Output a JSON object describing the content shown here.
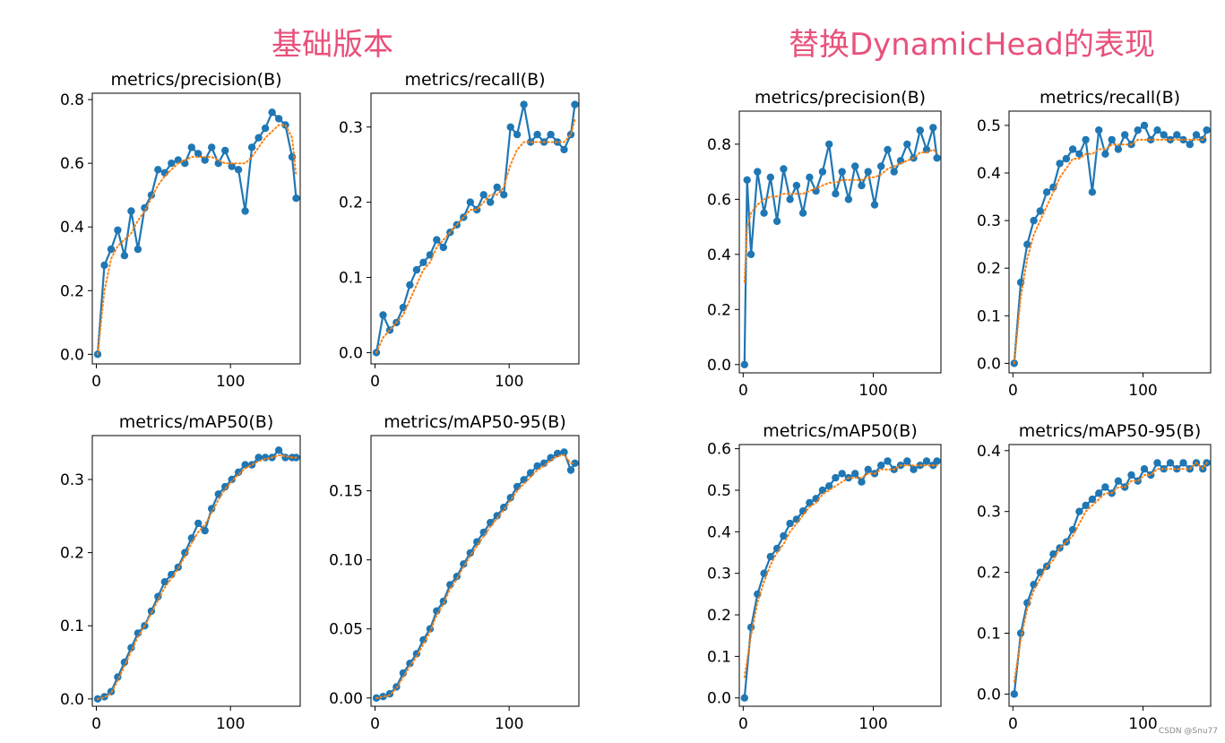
{
  "titles": {
    "left": "基础版本",
    "right": "替换DynamicHead的表现"
  },
  "watermark": "CSDN @Snu77",
  "colors": {
    "title": "#e8517a",
    "series": "#1f77b4",
    "smooth": "#ff7f0e"
  },
  "chart_data": [
    {
      "type": "line",
      "group": "基础版本",
      "title": "metrics/precision(B)",
      "xlim": [
        -3,
        152
      ],
      "ylim": [
        -0.03,
        0.82
      ],
      "xticks": [
        0,
        100
      ],
      "yticks": [
        0.0,
        0.2,
        0.4,
        0.6,
        0.8
      ],
      "ytick_labels": [
        "0.0",
        "0.2",
        "0.4",
        "0.6",
        "0.8"
      ],
      "x": [
        1,
        6,
        11,
        16,
        21,
        26,
        31,
        36,
        41,
        46,
        51,
        56,
        61,
        66,
        71,
        76,
        81,
        86,
        91,
        96,
        101,
        106,
        111,
        116,
        121,
        126,
        131,
        136,
        141,
        146,
        149
      ],
      "y": [
        0.0,
        0.28,
        0.33,
        0.39,
        0.31,
        0.45,
        0.33,
        0.46,
        0.5,
        0.58,
        0.57,
        0.6,
        0.61,
        0.6,
        0.65,
        0.63,
        0.61,
        0.65,
        0.6,
        0.64,
        0.59,
        0.58,
        0.45,
        0.65,
        0.68,
        0.71,
        0.76,
        0.74,
        0.72,
        0.62,
        0.49
      ],
      "smooth": [
        0.0,
        0.2,
        0.3,
        0.34,
        0.36,
        0.38,
        0.42,
        0.45,
        0.49,
        0.53,
        0.56,
        0.58,
        0.6,
        0.61,
        0.62,
        0.62,
        0.62,
        0.62,
        0.61,
        0.6,
        0.6,
        0.6,
        0.6,
        0.62,
        0.65,
        0.68,
        0.7,
        0.72,
        0.72,
        0.68,
        0.56
      ]
    },
    {
      "type": "line",
      "group": "基础版本",
      "title": "metrics/recall(B)",
      "xlim": [
        -3,
        152
      ],
      "ylim": [
        -0.015,
        0.345
      ],
      "xticks": [
        0,
        100
      ],
      "yticks": [
        0.0,
        0.1,
        0.2,
        0.3
      ],
      "ytick_labels": [
        "0.0",
        "0.1",
        "0.2",
        "0.3"
      ],
      "x": [
        1,
        6,
        11,
        16,
        21,
        26,
        31,
        36,
        41,
        46,
        51,
        56,
        61,
        66,
        71,
        76,
        81,
        86,
        91,
        96,
        101,
        106,
        111,
        116,
        121,
        126,
        131,
        136,
        141,
        146,
        149
      ],
      "y": [
        0.0,
        0.05,
        0.03,
        0.04,
        0.06,
        0.09,
        0.11,
        0.12,
        0.13,
        0.15,
        0.14,
        0.16,
        0.17,
        0.18,
        0.2,
        0.19,
        0.21,
        0.2,
        0.22,
        0.21,
        0.3,
        0.29,
        0.33,
        0.28,
        0.29,
        0.28,
        0.29,
        0.28,
        0.27,
        0.29,
        0.33
      ],
      "smooth": [
        0.0,
        0.02,
        0.03,
        0.04,
        0.05,
        0.07,
        0.09,
        0.11,
        0.12,
        0.14,
        0.15,
        0.16,
        0.17,
        0.18,
        0.19,
        0.19,
        0.2,
        0.21,
        0.21,
        0.22,
        0.25,
        0.27,
        0.28,
        0.28,
        0.28,
        0.28,
        0.28,
        0.28,
        0.28,
        0.29,
        0.31
      ]
    },
    {
      "type": "line",
      "group": "基础版本",
      "title": "metrics/mAP50(B)",
      "xlim": [
        -3,
        152
      ],
      "ylim": [
        -0.01,
        0.36
      ],
      "xticks": [
        0,
        100
      ],
      "yticks": [
        0.0,
        0.1,
        0.2,
        0.3
      ],
      "ytick_labels": [
        "0.0",
        "0.1",
        "0.2",
        "0.3"
      ],
      "x": [
        1,
        6,
        11,
        16,
        21,
        26,
        31,
        36,
        41,
        46,
        51,
        56,
        61,
        66,
        71,
        76,
        81,
        86,
        91,
        96,
        101,
        106,
        111,
        116,
        121,
        126,
        131,
        136,
        141,
        146,
        149
      ],
      "y": [
        0.0,
        0.003,
        0.01,
        0.03,
        0.05,
        0.07,
        0.09,
        0.1,
        0.12,
        0.14,
        0.16,
        0.17,
        0.18,
        0.2,
        0.22,
        0.24,
        0.23,
        0.26,
        0.28,
        0.29,
        0.3,
        0.31,
        0.32,
        0.32,
        0.33,
        0.33,
        0.33,
        0.34,
        0.33,
        0.33,
        0.33
      ],
      "smooth": [
        0.0,
        0.002,
        0.008,
        0.025,
        0.045,
        0.065,
        0.085,
        0.1,
        0.117,
        0.135,
        0.152,
        0.165,
        0.178,
        0.195,
        0.213,
        0.228,
        0.238,
        0.255,
        0.272,
        0.287,
        0.297,
        0.307,
        0.315,
        0.32,
        0.325,
        0.328,
        0.33,
        0.333,
        0.332,
        0.33,
        0.33
      ]
    },
    {
      "type": "line",
      "group": "基础版本",
      "title": "metrics/mAP50-95(B)",
      "xlim": [
        -3,
        152
      ],
      "ylim": [
        -0.006,
        0.19
      ],
      "xticks": [
        0,
        100
      ],
      "yticks": [
        0.0,
        0.05,
        0.1,
        0.15
      ],
      "ytick_labels": [
        "0.00",
        "0.05",
        "0.10",
        "0.15"
      ],
      "x": [
        1,
        6,
        11,
        16,
        21,
        26,
        31,
        36,
        41,
        46,
        51,
        56,
        61,
        66,
        71,
        76,
        81,
        86,
        91,
        96,
        101,
        106,
        111,
        116,
        121,
        126,
        131,
        136,
        141,
        146,
        149
      ],
      "y": [
        0.0,
        0.001,
        0.003,
        0.008,
        0.018,
        0.025,
        0.032,
        0.042,
        0.05,
        0.063,
        0.07,
        0.082,
        0.088,
        0.097,
        0.105,
        0.113,
        0.12,
        0.127,
        0.132,
        0.138,
        0.145,
        0.153,
        0.158,
        0.163,
        0.168,
        0.17,
        0.174,
        0.177,
        0.178,
        0.165,
        0.17
      ],
      "smooth": [
        0.0,
        0.001,
        0.002,
        0.007,
        0.015,
        0.023,
        0.03,
        0.039,
        0.048,
        0.06,
        0.068,
        0.079,
        0.086,
        0.095,
        0.103,
        0.11,
        0.117,
        0.124,
        0.13,
        0.136,
        0.143,
        0.15,
        0.155,
        0.16,
        0.165,
        0.168,
        0.172,
        0.175,
        0.176,
        0.17,
        0.17
      ]
    },
    {
      "type": "line",
      "group": "替换DynamicHead的表现",
      "title": "metrics/precision(B)",
      "xlim": [
        -3,
        152
      ],
      "ylim": [
        -0.03,
        0.92
      ],
      "xticks": [
        0,
        100
      ],
      "yticks": [
        0.0,
        0.2,
        0.4,
        0.6,
        0.8
      ],
      "ytick_labels": [
        "0.0",
        "0.2",
        "0.4",
        "0.6",
        "0.8"
      ],
      "x": [
        1,
        3,
        6,
        11,
        16,
        21,
        26,
        31,
        36,
        41,
        46,
        51,
        56,
        61,
        66,
        71,
        76,
        81,
        86,
        91,
        96,
        101,
        106,
        111,
        116,
        121,
        126,
        131,
        136,
        141,
        146,
        149
      ],
      "y": [
        0.0,
        0.67,
        0.4,
        0.7,
        0.55,
        0.68,
        0.52,
        0.71,
        0.6,
        0.65,
        0.55,
        0.68,
        0.63,
        0.7,
        0.8,
        0.62,
        0.7,
        0.6,
        0.72,
        0.65,
        0.7,
        0.58,
        0.72,
        0.78,
        0.7,
        0.74,
        0.8,
        0.75,
        0.85,
        0.78,
        0.86,
        0.75
      ],
      "smooth": [
        0.3,
        0.5,
        0.55,
        0.58,
        0.6,
        0.61,
        0.61,
        0.62,
        0.62,
        0.62,
        0.62,
        0.63,
        0.64,
        0.65,
        0.66,
        0.66,
        0.67,
        0.67,
        0.67,
        0.67,
        0.68,
        0.68,
        0.69,
        0.71,
        0.72,
        0.73,
        0.74,
        0.75,
        0.77,
        0.77,
        0.78,
        0.77
      ]
    },
    {
      "type": "line",
      "group": "替换DynamicHead的表现",
      "title": "metrics/recall(B)",
      "xlim": [
        -3,
        152
      ],
      "ylim": [
        -0.02,
        0.53
      ],
      "xticks": [
        0,
        100
      ],
      "yticks": [
        0.0,
        0.1,
        0.2,
        0.3,
        0.4,
        0.5
      ],
      "ytick_labels": [
        "0.0",
        "0.1",
        "0.2",
        "0.3",
        "0.4",
        "0.5"
      ],
      "x": [
        1,
        6,
        11,
        16,
        21,
        26,
        31,
        36,
        41,
        46,
        51,
        56,
        61,
        66,
        71,
        76,
        81,
        86,
        91,
        96,
        101,
        106,
        111,
        116,
        121,
        126,
        131,
        136,
        141,
        146,
        149
      ],
      "y": [
        0.0,
        0.17,
        0.25,
        0.3,
        0.32,
        0.36,
        0.37,
        0.42,
        0.43,
        0.45,
        0.44,
        0.47,
        0.36,
        0.49,
        0.44,
        0.47,
        0.45,
        0.48,
        0.46,
        0.49,
        0.5,
        0.47,
        0.49,
        0.48,
        0.47,
        0.48,
        0.47,
        0.46,
        0.48,
        0.47,
        0.49
      ],
      "smooth": [
        0.0,
        0.14,
        0.22,
        0.27,
        0.3,
        0.33,
        0.36,
        0.39,
        0.41,
        0.43,
        0.43,
        0.44,
        0.44,
        0.45,
        0.45,
        0.46,
        0.46,
        0.46,
        0.46,
        0.47,
        0.47,
        0.47,
        0.47,
        0.47,
        0.47,
        0.47,
        0.47,
        0.47,
        0.47,
        0.47,
        0.48
      ]
    },
    {
      "type": "line",
      "group": "替换DynamicHead的表现",
      "title": "metrics/mAP50(B)",
      "xlim": [
        -3,
        152
      ],
      "ylim": [
        -0.02,
        0.61
      ],
      "xticks": [
        0,
        100
      ],
      "yticks": [
        0.0,
        0.1,
        0.2,
        0.3,
        0.4,
        0.5,
        0.6
      ],
      "ytick_labels": [
        "0.0",
        "0.1",
        "0.2",
        "0.3",
        "0.4",
        "0.5",
        "0.6"
      ],
      "x": [
        1,
        6,
        11,
        16,
        21,
        26,
        31,
        36,
        41,
        46,
        51,
        56,
        61,
        66,
        71,
        76,
        81,
        86,
        91,
        96,
        101,
        106,
        111,
        116,
        121,
        126,
        131,
        136,
        141,
        146,
        149
      ],
      "y": [
        0.0,
        0.17,
        0.25,
        0.3,
        0.34,
        0.36,
        0.39,
        0.42,
        0.43,
        0.45,
        0.47,
        0.48,
        0.5,
        0.51,
        0.53,
        0.54,
        0.53,
        0.54,
        0.52,
        0.55,
        0.54,
        0.56,
        0.57,
        0.55,
        0.56,
        0.57,
        0.55,
        0.56,
        0.57,
        0.56,
        0.57
      ],
      "smooth": [
        0.05,
        0.15,
        0.23,
        0.28,
        0.32,
        0.35,
        0.37,
        0.4,
        0.42,
        0.44,
        0.46,
        0.47,
        0.49,
        0.5,
        0.51,
        0.52,
        0.53,
        0.53,
        0.53,
        0.54,
        0.54,
        0.55,
        0.55,
        0.55,
        0.56,
        0.56,
        0.56,
        0.56,
        0.56,
        0.56,
        0.56
      ]
    },
    {
      "type": "line",
      "group": "替换DynamicHead的表现",
      "title": "metrics/mAP50-95(B)",
      "xlim": [
        -3,
        152
      ],
      "ylim": [
        -0.02,
        0.41
      ],
      "xticks": [
        0,
        100
      ],
      "yticks": [
        0.0,
        0.1,
        0.2,
        0.3,
        0.4
      ],
      "ytick_labels": [
        "0.0",
        "0.1",
        "0.2",
        "0.3",
        "0.4"
      ],
      "x": [
        1,
        6,
        11,
        16,
        21,
        26,
        31,
        36,
        41,
        46,
        51,
        56,
        61,
        66,
        71,
        76,
        81,
        86,
        91,
        96,
        101,
        106,
        111,
        116,
        121,
        126,
        131,
        136,
        141,
        146,
        149
      ],
      "y": [
        0.0,
        0.1,
        0.15,
        0.18,
        0.2,
        0.21,
        0.23,
        0.24,
        0.25,
        0.27,
        0.3,
        0.31,
        0.32,
        0.33,
        0.34,
        0.33,
        0.35,
        0.34,
        0.36,
        0.35,
        0.37,
        0.36,
        0.38,
        0.37,
        0.38,
        0.37,
        0.38,
        0.37,
        0.38,
        0.37,
        0.38
      ],
      "smooth": [
        0.02,
        0.09,
        0.14,
        0.17,
        0.19,
        0.21,
        0.22,
        0.24,
        0.25,
        0.26,
        0.28,
        0.3,
        0.31,
        0.32,
        0.33,
        0.33,
        0.34,
        0.34,
        0.35,
        0.35,
        0.36,
        0.36,
        0.37,
        0.37,
        0.37,
        0.37,
        0.37,
        0.37,
        0.38,
        0.37,
        0.38
      ]
    }
  ]
}
